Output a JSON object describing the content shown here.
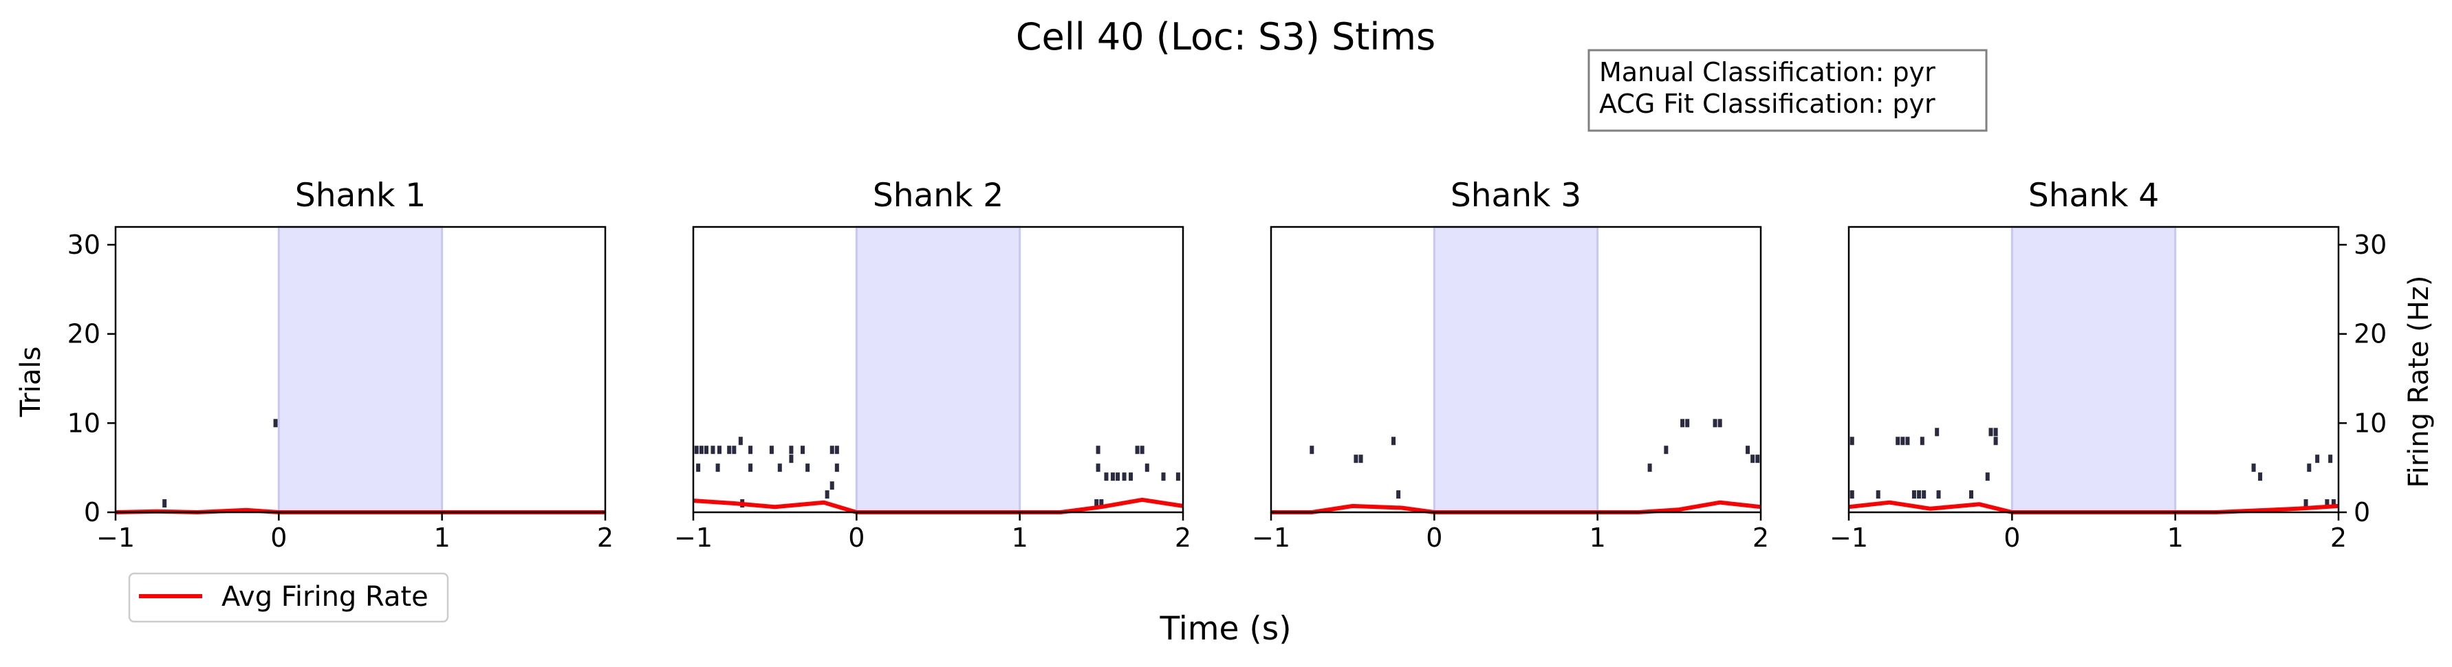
{
  "title": "Cell 40 (Loc: S3) Stims",
  "info_box": {
    "lines": [
      "Manual Classification: pyr",
      "ACG Fit Classification: pyr"
    ]
  },
  "xlabel": "Time (s)",
  "ylabel_left": "Trials",
  "ylabel_right": "Firing Rate (Hz)",
  "legend": {
    "label": "Avg Firing Rate",
    "color": "#ff0000"
  },
  "colors": {
    "stim_shade": "#e3e3fd",
    "stim_edge": "#c8c8f0",
    "raster": "#2a2a40",
    "rate_line": "#ff0000"
  },
  "chart_data": {
    "type": "raster",
    "x_ticks": [
      "−1",
      "0",
      "1",
      "2"
    ],
    "y_ticks": [
      "0",
      "10",
      "20",
      "30"
    ],
    "xlim": [
      -1,
      2
    ],
    "ylim_trials": [
      0,
      32
    ],
    "ylim_rate": [
      0,
      32
    ],
    "stim_window": [
      0,
      1
    ],
    "grid": false,
    "legend_position": "below-left",
    "panels": [
      {
        "title": "Shank 1",
        "spikes": [
          [
            -0.7,
            1
          ],
          [
            -0.02,
            10
          ]
        ],
        "rate": {
          "x": [
            -1,
            -0.75,
            -0.5,
            -0.2,
            0,
            0.25,
            0.5,
            0.75,
            1,
            1.25,
            1.5,
            1.75,
            2
          ],
          "y": [
            0,
            0.1,
            0,
            0.25,
            0,
            0,
            0,
            0,
            0,
            0,
            0,
            0,
            0
          ]
        }
      },
      {
        "title": "Shank 2",
        "spikes": [
          [
            -0.98,
            7
          ],
          [
            -0.95,
            7
          ],
          [
            -0.92,
            7
          ],
          [
            -0.88,
            7
          ],
          [
            -0.84,
            7
          ],
          [
            -0.78,
            7
          ],
          [
            -0.75,
            7
          ],
          [
            -0.71,
            8
          ],
          [
            -0.65,
            7
          ],
          [
            -0.52,
            7
          ],
          [
            -0.4,
            7
          ],
          [
            -0.33,
            7
          ],
          [
            -0.15,
            7
          ],
          [
            -0.12,
            7
          ],
          [
            -0.97,
            5
          ],
          [
            -0.85,
            5
          ],
          [
            -0.65,
            5
          ],
          [
            -0.47,
            5
          ],
          [
            -0.4,
            6
          ],
          [
            -0.3,
            5
          ],
          [
            -0.12,
            5
          ],
          [
            -0.15,
            3
          ],
          [
            -0.18,
            2
          ],
          [
            -0.7,
            1
          ],
          [
            1.48,
            7
          ],
          [
            1.72,
            7
          ],
          [
            1.75,
            7
          ],
          [
            1.48,
            5
          ],
          [
            1.53,
            4
          ],
          [
            1.57,
            4
          ],
          [
            1.6,
            4
          ],
          [
            1.64,
            4
          ],
          [
            1.68,
            4
          ],
          [
            1.78,
            5
          ],
          [
            1.88,
            4
          ],
          [
            1.97,
            4
          ],
          [
            1.47,
            1
          ],
          [
            1.5,
            1
          ]
        ],
        "rate": {
          "x": [
            -1,
            -0.75,
            -0.5,
            -0.2,
            0,
            0.25,
            0.5,
            0.75,
            1,
            1.25,
            1.5,
            1.75,
            2
          ],
          "y": [
            1.3,
            1.0,
            0.6,
            1.1,
            0,
            0,
            0,
            0,
            0,
            0,
            0.6,
            1.4,
            0.7
          ]
        }
      },
      {
        "title": "Shank 3",
        "spikes": [
          [
            -0.75,
            7
          ],
          [
            -0.48,
            6
          ],
          [
            -0.45,
            6
          ],
          [
            -0.25,
            8
          ],
          [
            -0.22,
            2
          ],
          [
            1.32,
            5
          ],
          [
            1.42,
            7
          ],
          [
            1.52,
            10
          ],
          [
            1.55,
            10
          ],
          [
            1.72,
            10
          ],
          [
            1.75,
            10
          ],
          [
            1.92,
            7
          ],
          [
            1.95,
            6
          ],
          [
            1.98,
            6
          ]
        ],
        "rate": {
          "x": [
            -1,
            -0.75,
            -0.5,
            -0.2,
            0,
            0.25,
            0.5,
            0.75,
            1,
            1.25,
            1.5,
            1.75,
            2
          ],
          "y": [
            0,
            0,
            0.7,
            0.5,
            0,
            0,
            0,
            0,
            0,
            0,
            0.3,
            1.1,
            0.6
          ]
        }
      },
      {
        "title": "Shank 4",
        "spikes": [
          [
            -0.98,
            8
          ],
          [
            -0.7,
            8
          ],
          [
            -0.67,
            8
          ],
          [
            -0.64,
            8
          ],
          [
            -0.55,
            8
          ],
          [
            -0.46,
            9
          ],
          [
            -0.13,
            9
          ],
          [
            -0.1,
            9
          ],
          [
            -0.1,
            8
          ],
          [
            -0.15,
            4
          ],
          [
            -0.98,
            2
          ],
          [
            -0.82,
            2
          ],
          [
            -0.6,
            2
          ],
          [
            -0.57,
            2
          ],
          [
            -0.54,
            2
          ],
          [
            -0.45,
            2
          ],
          [
            -0.25,
            2
          ],
          [
            1.48,
            5
          ],
          [
            1.52,
            4
          ],
          [
            1.82,
            5
          ],
          [
            1.87,
            6
          ],
          [
            1.95,
            6
          ],
          [
            1.8,
            1
          ],
          [
            1.93,
            1
          ],
          [
            1.97,
            1
          ]
        ],
        "rate": {
          "x": [
            -1,
            -0.75,
            -0.5,
            -0.2,
            0,
            0.25,
            0.5,
            0.75,
            1,
            1.25,
            1.5,
            1.75,
            2
          ],
          "y": [
            0.6,
            1.1,
            0.4,
            0.9,
            0,
            0,
            0,
            0,
            0,
            0,
            0.2,
            0.4,
            0.7
          ]
        }
      }
    ]
  }
}
